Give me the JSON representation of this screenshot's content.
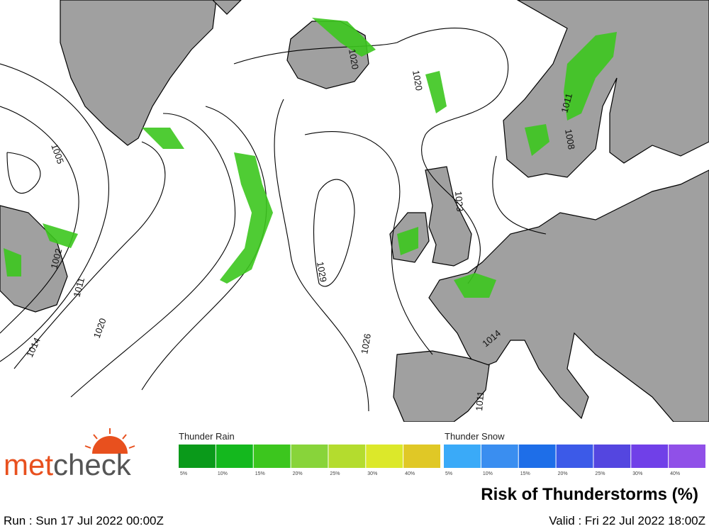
{
  "logo": {
    "part1": "met",
    "part2": "check"
  },
  "legend": {
    "thunder_rain": {
      "title": "Thunder Rain",
      "items": [
        {
          "label": "5%",
          "color": "#0a9a1a"
        },
        {
          "label": "10%",
          "color": "#14b81e"
        },
        {
          "label": "15%",
          "color": "#3cc61e"
        },
        {
          "label": "20%",
          "color": "#88d43a"
        },
        {
          "label": "25%",
          "color": "#b4dc2e"
        },
        {
          "label": "30%",
          "color": "#dce82a"
        },
        {
          "label": "40%",
          "color": "#e0c826"
        }
      ]
    },
    "thunder_snow": {
      "title": "Thunder Snow",
      "items": [
        {
          "label": "5%",
          "color": "#3aaaf8"
        },
        {
          "label": "10%",
          "color": "#3a8ef0"
        },
        {
          "label": "15%",
          "color": "#1e6ee8"
        },
        {
          "label": "20%",
          "color": "#3c5ae8"
        },
        {
          "label": "25%",
          "color": "#5446e0"
        },
        {
          "label": "30%",
          "color": "#7040e8"
        },
        {
          "label": "40%",
          "color": "#9050e8"
        }
      ]
    }
  },
  "title": "Risk of Thunderstorms (%)",
  "run": "Run : Sun 17 Jul 2022 00:00Z",
  "valid": "Valid : Fri 22 Jul 2022 18:00Z",
  "isobar_labels": [
    "1005",
    "1002",
    "1011",
    "1020",
    "1014",
    "1020",
    "1020",
    "1023",
    "1029",
    "1026",
    "1011",
    "1008",
    "1011",
    "1014"
  ]
}
